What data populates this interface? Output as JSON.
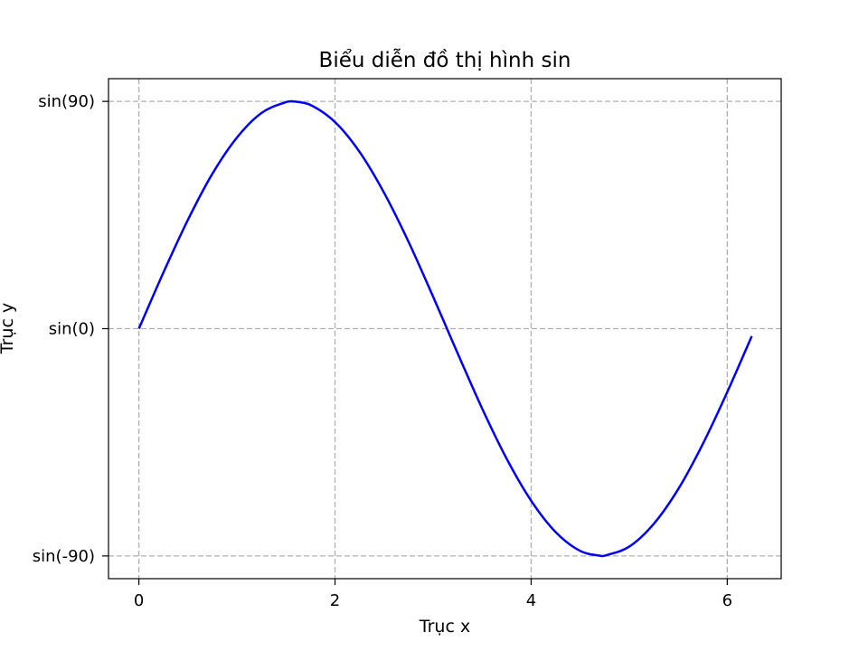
{
  "chart_data": {
    "type": "line",
    "title": "Biểu diễn đồ thị hình sin",
    "xlabel": "Trục x",
    "ylabel": "Trục y",
    "xlim": [
      -0.31,
      6.55
    ],
    "ylim": [
      -1.1,
      1.1
    ],
    "grid": true,
    "x_ticks": [
      {
        "value": 0,
        "label": "0"
      },
      {
        "value": 2,
        "label": "2"
      },
      {
        "value": 4,
        "label": "4"
      },
      {
        "value": 6,
        "label": "6"
      }
    ],
    "y_ticks": [
      {
        "value": -1,
        "label": "sin(-90)"
      },
      {
        "value": 0,
        "label": "sin(0)"
      },
      {
        "value": 1,
        "label": "sin(90)"
      }
    ],
    "series": [
      {
        "color": "#0000ff",
        "x": [
          0,
          0.25,
          0.5,
          0.75,
          1.0,
          1.25,
          1.5,
          1.5708,
          1.75,
          2.0,
          2.25,
          2.5,
          2.75,
          3.0,
          3.1416,
          3.25,
          3.5,
          3.75,
          4.0,
          4.25,
          4.5,
          4.7124,
          4.75,
          5.0,
          5.25,
          5.5,
          5.75,
          6.0,
          6.25
        ],
        "y": [
          0,
          0.247,
          0.479,
          0.682,
          0.841,
          0.949,
          0.997,
          1.0,
          0.984,
          0.909,
          0.778,
          0.598,
          0.382,
          0.141,
          0,
          -0.108,
          -0.351,
          -0.572,
          -0.757,
          -0.895,
          -0.978,
          -1.0,
          -0.999,
          -0.959,
          -0.859,
          -0.706,
          -0.508,
          -0.279,
          -0.033
        ]
      }
    ]
  },
  "colors": {
    "line": "#0000ff",
    "grid": "#b0b0b0",
    "axes": "#000000",
    "background": "#ffffff"
  }
}
